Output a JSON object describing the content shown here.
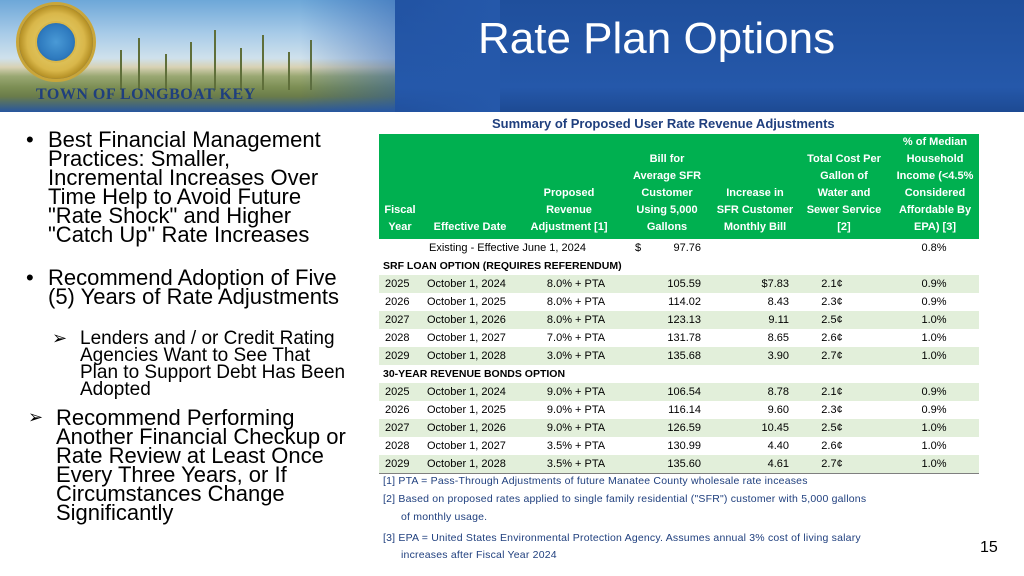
{
  "header": {
    "title": "Rate Plan Options",
    "town": "TOWN OF LONGBOAT KEY"
  },
  "bullets": {
    "b1": "Best Financial Management Practices: Smaller, Incremental Increases Over Time Help to Avoid Future \"Rate Shock\" and Higher \"Catch Up\" Rate Increases",
    "b2": "Recommend Adoption of Five (5) Years of Rate Adjustments",
    "b2_sub": "Lenders and / or Credit Rating Agencies Want to See That Plan to Support Debt Has Been Adopted",
    "b3": "Recommend Performing Another Financial Checkup or Rate Review at Least Once Every Three Years, or If Circumstances Change Significantly"
  },
  "table": {
    "title": "Summary of Proposed User Rate Revenue Adjustments",
    "headers": {
      "fiscal_year": [
        "Fiscal",
        "Year"
      ],
      "effective_date": [
        "Effective Date"
      ],
      "adjustment": [
        "Proposed",
        "Revenue",
        "Adjustment [1]"
      ],
      "bill": [
        "Bill for",
        "Average SFR",
        "Customer",
        "Using 5,000",
        "Gallons"
      ],
      "increase": [
        "Increase in",
        "SFR Customer",
        "Monthly Bill"
      ],
      "total_cost": [
        "Total Cost Per",
        "Gallon of",
        "Water and",
        "Sewer Service",
        "[2]"
      ],
      "pct_income": [
        "% of Median",
        "Household",
        "Income (<4.5%",
        "Considered",
        "Affordable By",
        "EPA) [3]"
      ]
    },
    "existing": {
      "label": "Existing - Effective June 1, 2024",
      "dollar": "$",
      "bill": "97.76",
      "pct": "0.8%"
    },
    "sections": [
      {
        "name": "SRF LOAN OPTION (REQUIRES REFERENDUM)",
        "rows": [
          {
            "year": "2025",
            "date": "October 1, 2024",
            "adj": "8.0% + PTA",
            "bill": "105.59",
            "inc": "$7.83",
            "tot": "2.1¢",
            "pct": "0.9%"
          },
          {
            "year": "2026",
            "date": "October 1, 2025",
            "adj": "8.0% + PTA",
            "bill": "114.02",
            "inc": "8.43",
            "tot": "2.3¢",
            "pct": "0.9%"
          },
          {
            "year": "2027",
            "date": "October 1, 2026",
            "adj": "8.0% + PTA",
            "bill": "123.13",
            "inc": "9.11",
            "tot": "2.5¢",
            "pct": "1.0%"
          },
          {
            "year": "2028",
            "date": "October 1, 2027",
            "adj": "7.0% + PTA",
            "bill": "131.78",
            "inc": "8.65",
            "tot": "2.6¢",
            "pct": "1.0%"
          },
          {
            "year": "2029",
            "date": "October 1, 2028",
            "adj": "3.0% + PTA",
            "bill": "135.68",
            "inc": "3.90",
            "tot": "2.7¢",
            "pct": "1.0%"
          }
        ]
      },
      {
        "name": "30-YEAR REVENUE BONDS OPTION",
        "rows": [
          {
            "year": "2025",
            "date": "October 1, 2024",
            "adj": "9.0% + PTA",
            "bill": "106.54",
            "inc": "8.78",
            "tot": "2.1¢",
            "pct": "0.9%"
          },
          {
            "year": "2026",
            "date": "October 1, 2025",
            "adj": "9.0% + PTA",
            "bill": "116.14",
            "inc": "9.60",
            "tot": "2.3¢",
            "pct": "0.9%"
          },
          {
            "year": "2027",
            "date": "October 1, 2026",
            "adj": "9.0% + PTA",
            "bill": "126.59",
            "inc": "10.45",
            "tot": "2.5¢",
            "pct": "1.0%"
          },
          {
            "year": "2028",
            "date": "October 1, 2027",
            "adj": "3.5% + PTA",
            "bill": "130.99",
            "inc": "4.40",
            "tot": "2.6¢",
            "pct": "1.0%"
          },
          {
            "year": "2029",
            "date": "October 1, 2028",
            "adj": "3.5% + PTA",
            "bill": "135.60",
            "inc": "4.61",
            "tot": "2.7¢",
            "pct": "1.0%"
          }
        ]
      }
    ],
    "notes": [
      "[1] PTA = Pass-Through Adjustments of future Manatee County wholesale rate inceases",
      "[2] Based on proposed rates applied to single family residential (\"SFR\") customer with 5,000 gallons",
      "of monthly usage.",
      "[3] EPA = United States Environmental Protection Agency. Assumes annual 3% cost of living salary",
      "increases after Fiscal Year 2024"
    ]
  },
  "page_number": "15",
  "colors": {
    "banner_blue": "#2558aa",
    "table_header_green": "#00b050",
    "row_shade": "#e2efda",
    "title_navy": "#1f3f7e"
  }
}
